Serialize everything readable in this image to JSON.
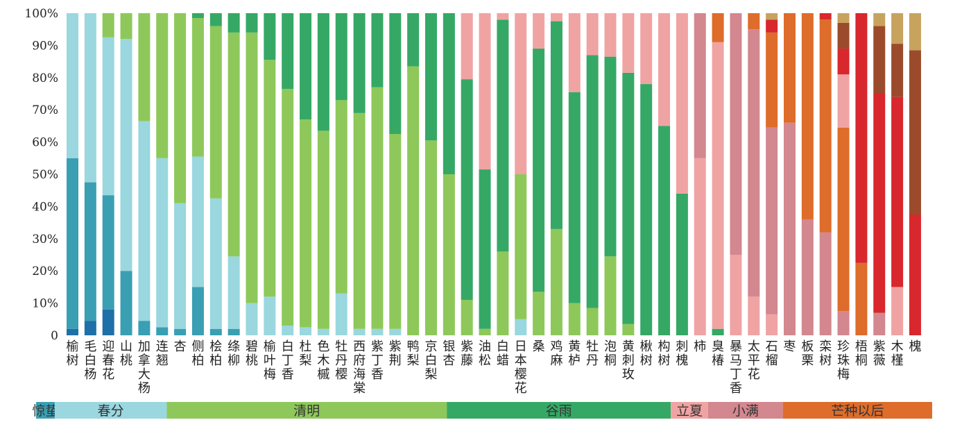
{
  "chart_data": {
    "type": "bar",
    "stacked": true,
    "y_unit": "%",
    "ylim": [
      0,
      100
    ],
    "y_ticks": [
      "0",
      "10%",
      "20%",
      "30%",
      "40%",
      "50%",
      "60%",
      "70%",
      "80%",
      "90%",
      "100%"
    ],
    "stages": [
      {
        "label": "惊蛰",
        "color": "#3a9fb2"
      },
      {
        "label": "春分",
        "color": "#9ad7df"
      },
      {
        "label": "清明",
        "color": "#8ec85a"
      },
      {
        "label": "谷雨",
        "color": "#35a865"
      },
      {
        "label": "立夏",
        "color": "#f0a3a3"
      },
      {
        "label": "小满",
        "color": "#d3878f"
      },
      {
        "label": "芒种以后",
        "color": "#de6c2a"
      }
    ],
    "segment_colors": {
      "deep_blue": "#1f6fa8",
      "teal": "#3a9fb2",
      "light_blue": "#9ad7df",
      "light_green": "#8ec85a",
      "green": "#35a865",
      "pink": "#f0a3a3",
      "rose": "#d3878f",
      "orange": "#de6c2a",
      "red": "#d8272d",
      "brown": "#9b4b2b",
      "khaki": "#c7a35e"
    },
    "categories": [
      "榆树",
      "毛白杨",
      "迎春花",
      "山桃",
      "加拿大杨",
      "连翘",
      "杏",
      "侧柏",
      "桧柏",
      "绦柳",
      "碧桃",
      "榆叶梅",
      "白丁香",
      "杜梨",
      "色木槭",
      "牡丹樱",
      "西府海棠",
      "紫丁香",
      "紫荆",
      "鸭梨",
      "京白梨",
      "银杏",
      "紫藤",
      "油松",
      "白蜡",
      "日本樱花",
      "桑",
      "鸡麻",
      "黄栌",
      "牡丹",
      "泡桐",
      "黄刺玫",
      "楸树",
      "构树",
      "刺槐",
      "柿",
      "臭椿",
      "暴马丁香",
      "太平花",
      "石榴",
      "枣",
      "板栗",
      "栾树",
      "珍珠梅",
      "梧桐",
      "紫薇",
      "木槿",
      "槐"
    ],
    "bars": [
      [
        [
          "deep_blue",
          2
        ],
        [
          "teal",
          53
        ],
        [
          "light_blue",
          45
        ]
      ],
      [
        [
          "deep_blue",
          4.5
        ],
        [
          "teal",
          43
        ],
        [
          "light_blue",
          52.5
        ]
      ],
      [
        [
          "deep_blue",
          8
        ],
        [
          "teal",
          35.5
        ],
        [
          "light_blue",
          49
        ],
        [
          "light_green",
          7.5
        ]
      ],
      [
        [
          "teal",
          20
        ],
        [
          "light_blue",
          72
        ],
        [
          "light_green",
          8
        ]
      ],
      [
        [
          "teal",
          4.5
        ],
        [
          "light_blue",
          62
        ],
        [
          "light_green",
          33.5
        ]
      ],
      [
        [
          "teal",
          2.5
        ],
        [
          "light_blue",
          52.5
        ],
        [
          "light_green",
          45
        ]
      ],
      [
        [
          "teal",
          2
        ],
        [
          "light_blue",
          39
        ],
        [
          "light_green",
          59
        ]
      ],
      [
        [
          "teal",
          15
        ],
        [
          "light_blue",
          40.5
        ],
        [
          "light_green",
          43
        ],
        [
          "green",
          1.5
        ]
      ],
      [
        [
          "teal",
          2
        ],
        [
          "light_blue",
          40.5
        ],
        [
          "light_green",
          53.5
        ],
        [
          "green",
          4
        ]
      ],
      [
        [
          "teal",
          2
        ],
        [
          "light_blue",
          22.5
        ],
        [
          "light_green",
          69.5
        ],
        [
          "green",
          6
        ]
      ],
      [
        [
          "light_blue",
          10
        ],
        [
          "light_green",
          84
        ],
        [
          "green",
          6
        ]
      ],
      [
        [
          "light_blue",
          12
        ],
        [
          "light_green",
          73.5
        ],
        [
          "green",
          14.5
        ]
      ],
      [
        [
          "light_blue",
          3
        ],
        [
          "light_green",
          73.5
        ],
        [
          "green",
          23.5
        ]
      ],
      [
        [
          "light_blue",
          2.5
        ],
        [
          "light_green",
          64.5
        ],
        [
          "green",
          33
        ]
      ],
      [
        [
          "light_blue",
          2
        ],
        [
          "light_green",
          61.5
        ],
        [
          "green",
          36.5
        ]
      ],
      [
        [
          "light_blue",
          13
        ],
        [
          "light_green",
          60
        ],
        [
          "green",
          27
        ]
      ],
      [
        [
          "light_blue",
          2
        ],
        [
          "light_green",
          67
        ],
        [
          "green",
          31
        ]
      ],
      [
        [
          "light_blue",
          2
        ],
        [
          "light_green",
          75
        ],
        [
          "green",
          23
        ]
      ],
      [
        [
          "light_blue",
          2
        ],
        [
          "light_green",
          60.5
        ],
        [
          "green",
          37.5
        ]
      ],
      [
        [
          "light_green",
          83.5
        ],
        [
          "green",
          16.5
        ]
      ],
      [
        [
          "light_green",
          60.5
        ],
        [
          "green",
          39.5
        ]
      ],
      [
        [
          "light_green",
          50
        ],
        [
          "green",
          50
        ]
      ],
      [
        [
          "light_green",
          11
        ],
        [
          "green",
          68.5
        ],
        [
          "pink",
          20.5
        ]
      ],
      [
        [
          "light_green",
          2
        ],
        [
          "green",
          49.5
        ],
        [
          "pink",
          48.5
        ]
      ],
      [
        [
          "light_green",
          26
        ],
        [
          "green",
          72
        ],
        [
          "pink",
          2
        ]
      ],
      [
        [
          "light_blue",
          5
        ],
        [
          "light_green",
          45
        ],
        [
          "green",
          0
        ],
        [
          "pink",
          50
        ]
      ],
      [
        [
          "light_green",
          13.5
        ],
        [
          "green",
          75.5
        ],
        [
          "pink",
          11
        ]
      ],
      [
        [
          "light_green",
          33
        ],
        [
          "green",
          64.5
        ],
        [
          "pink",
          2.5
        ]
      ],
      [
        [
          "light_green",
          10
        ],
        [
          "green",
          65.5
        ],
        [
          "pink",
          24.5
        ]
      ],
      [
        [
          "light_green",
          8.5
        ],
        [
          "green",
          78.5
        ],
        [
          "pink",
          13
        ]
      ],
      [
        [
          "light_green",
          24.5
        ],
        [
          "green",
          62
        ],
        [
          "pink",
          13.5
        ]
      ],
      [
        [
          "light_green",
          3.5
        ],
        [
          "green",
          78
        ],
        [
          "pink",
          18.5
        ]
      ],
      [
        [
          "green",
          78
        ],
        [
          "pink",
          22
        ]
      ],
      [
        [
          "green",
          65
        ],
        [
          "pink",
          35
        ]
      ],
      [
        [
          "green",
          44
        ],
        [
          "pink",
          56
        ]
      ],
      [
        [
          "pink",
          55
        ],
        [
          "rose",
          45
        ]
      ],
      [
        [
          "green",
          2
        ],
        [
          "pink",
          89
        ],
        [
          "orange",
          9
        ]
      ],
      [
        [
          "pink",
          25
        ],
        [
          "rose",
          75
        ]
      ],
      [
        [
          "pink",
          12
        ],
        [
          "rose",
          83
        ],
        [
          "orange",
          5
        ]
      ],
      [
        [
          "pink",
          6.5
        ],
        [
          "rose",
          58
        ],
        [
          "orange",
          29.5
        ],
        [
          "red",
          4
        ],
        [
          "khaki",
          2
        ]
      ],
      [
        [
          "rose",
          66
        ],
        [
          "orange",
          34
        ]
      ],
      [
        [
          "rose",
          36
        ],
        [
          "orange",
          64
        ]
      ],
      [
        [
          "rose",
          32
        ],
        [
          "orange",
          66
        ],
        [
          "red",
          2
        ]
      ],
      [
        [
          "rose",
          7.5
        ],
        [
          "orange",
          57
        ],
        [
          "pink",
          16.5
        ],
        [
          "red",
          8
        ],
        [
          "brown",
          8
        ],
        [
          "khaki",
          3
        ]
      ],
      [
        [
          "orange",
          22.5
        ],
        [
          "red",
          77.5
        ]
      ],
      [
        [
          "rose",
          7
        ],
        [
          "red",
          68
        ],
        [
          "brown",
          21
        ],
        [
          "khaki",
          4
        ]
      ],
      [
        [
          "pink",
          15
        ],
        [
          "red",
          59
        ],
        [
          "brown",
          16.5
        ],
        [
          "khaki",
          9.5
        ]
      ],
      [
        [
          "red",
          37.5
        ],
        [
          "brown",
          51
        ],
        [
          "khaki",
          11.5
        ]
      ]
    ]
  },
  "stage_band": [
    {
      "label": "惊蛰",
      "color": "#3a9fb2",
      "bars": 1
    },
    {
      "label": "春分",
      "color": "#9ad7df",
      "bars": 6
    },
    {
      "label": "清明",
      "color": "#8ec85a",
      "bars": 15
    },
    {
      "label": "谷雨",
      "color": "#35a865",
      "bars": 12
    },
    {
      "label": "立夏",
      "color": "#f0a3a3",
      "bars": 2
    },
    {
      "label": "小满",
      "color": "#d3878f",
      "bars": 4
    },
    {
      "label": "芒种以后",
      "color": "#de6c2a",
      "bars": 8
    }
  ]
}
